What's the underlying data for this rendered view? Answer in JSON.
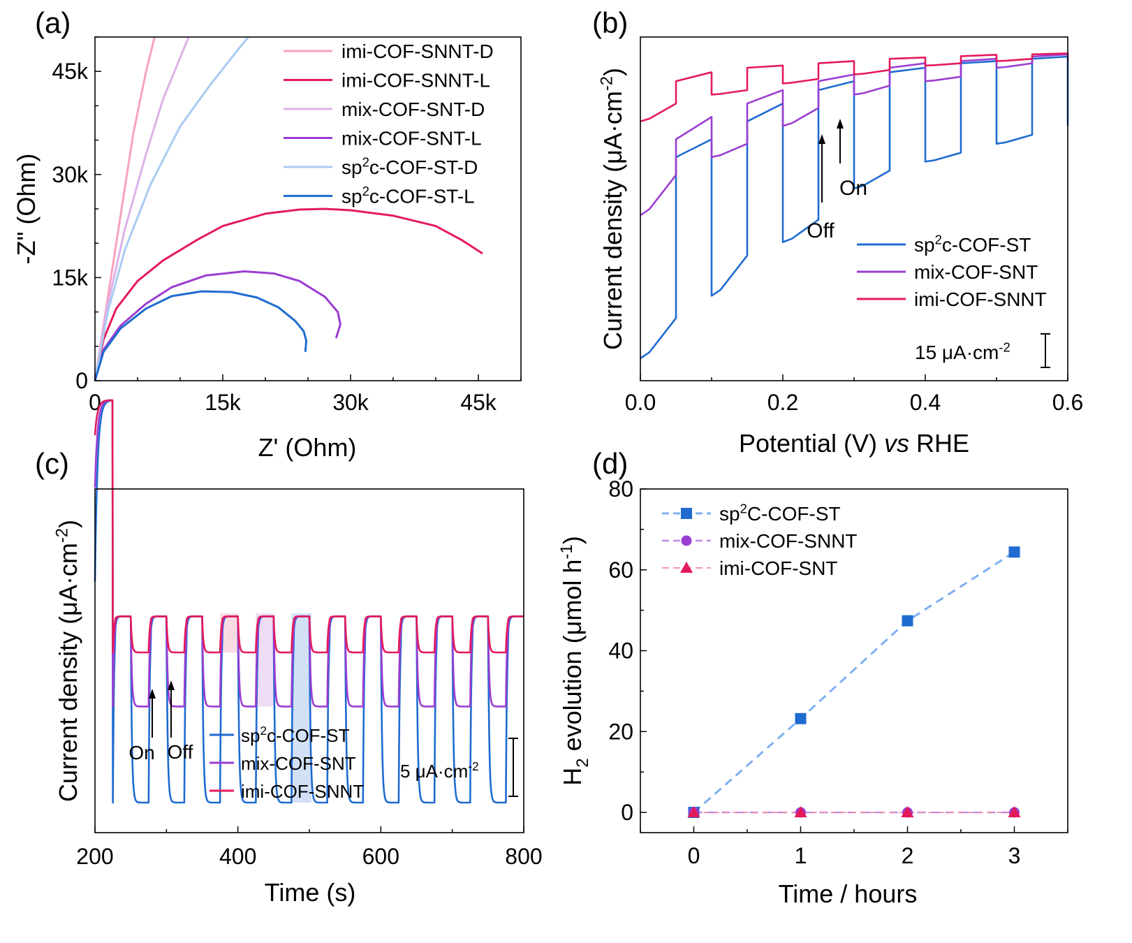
{
  "panels": [
    {
      "id": "a",
      "panel_label": "(a)",
      "xlabel": "Z' (Ohm)",
      "ylabel": "-Z\" (Ohm)",
      "xticks": [
        {
          "v": 0,
          "label": "0"
        },
        {
          "v": 15000,
          "label": "15k"
        },
        {
          "v": 30000,
          "label": "30k"
        },
        {
          "v": 45000,
          "label": "45k"
        }
      ],
      "yticks": [
        {
          "v": 0,
          "label": "0"
        },
        {
          "v": 15000,
          "label": "15k"
        },
        {
          "v": 30000,
          "label": "30k"
        },
        {
          "v": 45000,
          "label": "45k"
        }
      ],
      "legend": [
        {
          "label": "imi-COF-SNNT-D",
          "color": "#f7a1c0"
        },
        {
          "label": "imi-COF-SNNT-L",
          "color": "#e41a5a"
        },
        {
          "label": "mix-COF-SNT-D",
          "color": "#dcb2e8"
        },
        {
          "label": "mix-COF-SNT-L",
          "color": "#9b3dd1"
        },
        {
          "label": "sp",
          "sup": "2",
          "rest": "c-COF-ST-D",
          "color": "#a9cbf2"
        },
        {
          "label": "sp",
          "sup": "2",
          "rest": "c-COF-ST-L",
          "color": "#1f6bd1"
        }
      ]
    },
    {
      "id": "b",
      "panel_label": "(b)",
      "xlabel_parts": [
        "Potential (V) ",
        "vs",
        " RHE"
      ],
      "ylabel": "Current density (μA·cm",
      "ylabel_sup": "-2",
      "ylabel_close": ")",
      "xticks": [
        {
          "v": 0,
          "label": "0.0"
        },
        {
          "v": 0.2,
          "label": "0.2"
        },
        {
          "v": 0.4,
          "label": "0.4"
        },
        {
          "v": 0.6,
          "label": "0.6"
        }
      ],
      "annotations": {
        "off": "Off",
        "on": "On",
        "scale": "15 μA·cm",
        "scale_sup": "-2"
      },
      "legend": [
        {
          "label": "sp",
          "sup": "2",
          "rest": "c-COF-ST",
          "color": "#1f6bd1"
        },
        {
          "label": "mix-COF-SNT",
          "color": "#9b3dd1"
        },
        {
          "label": "imi-COF-SNNT",
          "color": "#e41a5a"
        }
      ]
    },
    {
      "id": "c",
      "panel_label": "(c)",
      "xlabel": "Time (s)",
      "ylabel": "Current density (μA·cm",
      "ylabel_sup": "-2",
      "ylabel_close": ")",
      "xticks": [
        {
          "v": 200,
          "label": "200"
        },
        {
          "v": 400,
          "label": "400"
        },
        {
          "v": 600,
          "label": "600"
        },
        {
          "v": 800,
          "label": "800"
        }
      ],
      "annotations": {
        "on": "On",
        "off": "Off",
        "scale": "5 μA·cm",
        "scale_sup": "-2"
      },
      "legend": [
        {
          "label": "sp",
          "sup": "2",
          "rest": "c-COF-ST",
          "color": "#1f6bd1"
        },
        {
          "label": "mix-COF-SNT",
          "color": "#9b3dd1"
        },
        {
          "label": "imi-COF-SNNT",
          "color": "#e41a5a"
        }
      ]
    },
    {
      "id": "d",
      "panel_label": "(d)",
      "xlabel": "Time / hours",
      "ylabel_parts": [
        "H",
        "2",
        " evolution (μmol h",
        "-1",
        ")"
      ],
      "xticks": [
        {
          "v": 0,
          "label": "0"
        },
        {
          "v": 1,
          "label": "1"
        },
        {
          "v": 2,
          "label": "2"
        },
        {
          "v": 3,
          "label": "3"
        }
      ],
      "yticks": [
        {
          "v": 0,
          "label": "0"
        },
        {
          "v": 20,
          "label": "20"
        },
        {
          "v": 40,
          "label": "40"
        },
        {
          "v": 60,
          "label": "60"
        },
        {
          "v": 80,
          "label": "80"
        }
      ],
      "legend": [
        {
          "label": "sp",
          "sup": "2",
          "rest": "C-COF-ST",
          "color": "#1f6bd1",
          "marker": "square"
        },
        {
          "label": "mix-COF-SNNT",
          "color": "#9b3dd1",
          "marker": "circle"
        },
        {
          "label": "imi-COF-SNT",
          "color": "#e41a5a",
          "marker": "triangle"
        }
      ]
    }
  ],
  "chart_data": [
    {
      "type": "line",
      "panel": "a",
      "xlim": [
        0,
        50000
      ],
      "ylim": [
        0,
        50000
      ],
      "series": [
        {
          "name": "imi-COF-SNNT-D",
          "x": [
            0,
            1500,
            3000,
            4500,
            6000,
            7000
          ],
          "y": [
            0,
            12000,
            24000,
            36000,
            45000,
            50000
          ]
        },
        {
          "name": "imi-COF-SNNT-L",
          "x": [
            0,
            1000,
            2500,
            5000,
            8000,
            12000,
            15000,
            20000,
            24000,
            27000,
            30000,
            35000,
            40000,
            43000,
            45500
          ],
          "y": [
            0,
            6000,
            10500,
            14500,
            17500,
            20500,
            22500,
            24300,
            24900,
            25000,
            24800,
            24000,
            22500,
            20500,
            18500
          ]
        },
        {
          "name": "mix-COF-SNT-D",
          "x": [
            0,
            1500,
            3500,
            6000,
            8000,
            11000
          ],
          "y": [
            0,
            11000,
            22000,
            33000,
            41000,
            50000
          ]
        },
        {
          "name": "mix-COF-SNT-L",
          "x": [
            0,
            1000,
            3000,
            6000,
            9000,
            13000,
            17500,
            21000,
            24000,
            27000,
            28500,
            28800,
            28300
          ],
          "y": [
            0,
            4500,
            8000,
            11200,
            13600,
            15300,
            15900,
            15600,
            14500,
            12200,
            10000,
            8200,
            6200
          ]
        },
        {
          "name": "sp2c-COF-ST-D",
          "x": [
            0,
            1500,
            3500,
            6500,
            10000,
            13500,
            17000,
            18000
          ],
          "y": [
            0,
            10000,
            19000,
            28500,
            37000,
            43000,
            48500,
            50000
          ]
        },
        {
          "name": "sp2c-COF-ST-L",
          "x": [
            0,
            1000,
            3000,
            6000,
            9000,
            12500,
            16000,
            19000,
            21500,
            23500,
            24500,
            24800,
            24700
          ],
          "y": [
            0,
            4200,
            7600,
            10500,
            12300,
            13000,
            12900,
            12100,
            10700,
            8700,
            7200,
            5800,
            4200
          ]
        }
      ]
    },
    {
      "type": "line",
      "panel": "b",
      "xlim": [
        0,
        0.6
      ],
      "chop_period_V": 0.05,
      "series": [
        {
          "name": "sp2c-COF-ST",
          "dark_x": [
            0,
            0.025,
            0.05,
            0.1,
            0.15,
            0.2,
            0.25,
            0.3,
            0.35,
            0.4,
            0.45,
            0.5,
            0.55,
            0.6
          ],
          "dark_y": [
            5,
            33,
            14,
            19,
            28,
            31,
            36,
            43,
            47,
            49,
            51,
            53,
            55,
            57
          ],
          "light_y": [
            5,
            40,
            50,
            54,
            58,
            62,
            65,
            67,
            69,
            70,
            71,
            71.5,
            72,
            72.5
          ]
        },
        {
          "name": "mix-COF-SNT",
          "dark_x": [
            0,
            0.025,
            0.05,
            0.1,
            0.15,
            0.2,
            0.25,
            0.3,
            0.35,
            0.4,
            0.45,
            0.5,
            0.55,
            0.6
          ],
          "dark_y": [
            37,
            37,
            46,
            50,
            53,
            57,
            61,
            64,
            66,
            67,
            68,
            70,
            71,
            72
          ],
          "light_y": [
            37,
            47,
            54,
            59,
            62,
            65,
            67,
            68.5,
            70,
            71,
            71.5,
            72,
            72.5,
            73
          ]
        },
        {
          "name": "imi-COF-SNNT",
          "dark_x": [
            0,
            0.05,
            0.1,
            0.15,
            0.2,
            0.25,
            0.3,
            0.35,
            0.4,
            0.45,
            0.5,
            0.55,
            0.6
          ],
          "dark_y": [
            58,
            62,
            64,
            65,
            66.5,
            67.5,
            68.5,
            69.5,
            70.5,
            71,
            71.5,
            72,
            73
          ],
          "light_y": [
            58,
            67,
            69,
            70,
            70.5,
            71,
            71.5,
            72,
            72.3,
            72.6,
            72.9,
            73,
            73.2
          ]
        }
      ]
    },
    {
      "type": "line",
      "panel": "c",
      "xlim": [
        200,
        800
      ],
      "chop_period_s": 50,
      "first_light_on_s": 225,
      "series": [
        {
          "name": "sp2c-COF-ST",
          "dark_level": 5,
          "light_level": 36
        },
        {
          "name": "mix-COF-SNT",
          "dark_level": 21,
          "light_level": 36
        },
        {
          "name": "imi-COF-SNNT",
          "dark_level": 30,
          "light_level": 36
        }
      ]
    },
    {
      "type": "scatter",
      "panel": "d",
      "x": [
        0,
        1,
        2,
        3
      ],
      "xlim": [
        -0.5,
        3.5
      ],
      "ylim": [
        -5,
        80
      ],
      "series": [
        {
          "name": "sp2C-COF-ST",
          "values": [
            0,
            23.2,
            47.4,
            64.4
          ]
        },
        {
          "name": "mix-COF-SNNT",
          "values": [
            0,
            0,
            0,
            0
          ]
        },
        {
          "name": "imi-COF-SNT",
          "values": [
            0,
            0,
            0,
            0
          ]
        }
      ]
    }
  ]
}
